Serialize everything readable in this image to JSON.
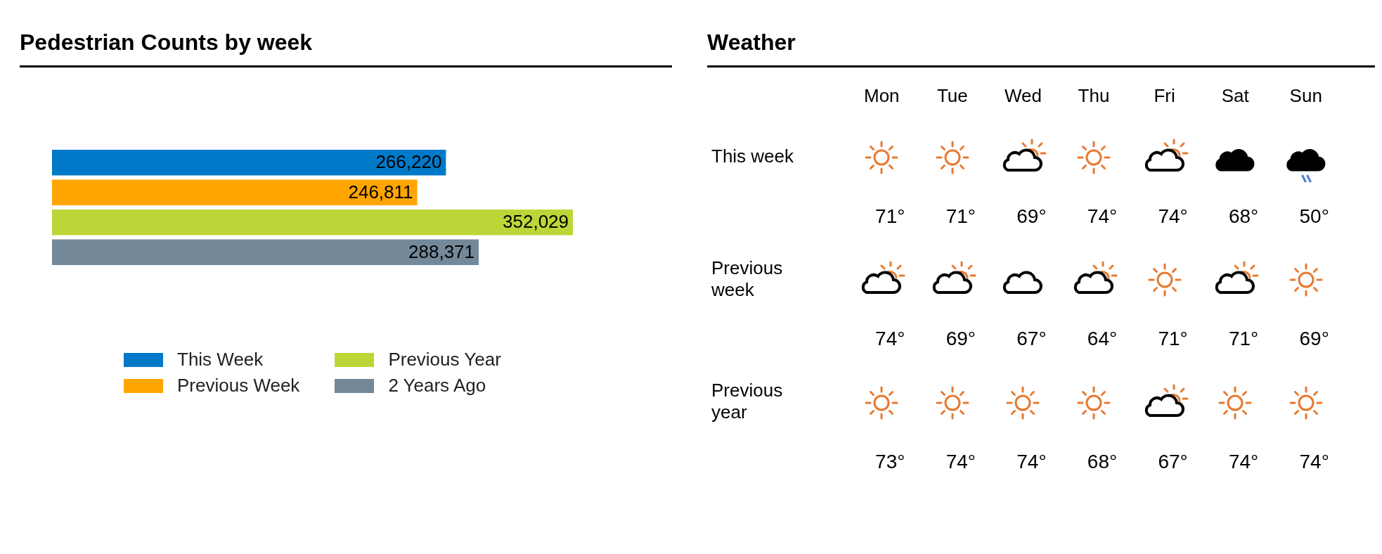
{
  "chart_data": [
    {
      "type": "bar",
      "title": "Pedestrian Counts by week",
      "orientation": "horizontal",
      "categories": [
        null
      ],
      "series": [
        {
          "name": "This Week",
          "color": "#0079c8",
          "values": [
            266220
          ],
          "value_labels": [
            "266,220"
          ]
        },
        {
          "name": "Previous Week",
          "color": "#ffa500",
          "values": [
            246811
          ],
          "value_labels": [
            "246,811"
          ]
        },
        {
          "name": "Previous Year",
          "color": "#bcd637",
          "values": [
            352029
          ],
          "value_labels": [
            "352,029"
          ]
        },
        {
          "name": "2 Years Ago",
          "color": "#738899",
          "values": [
            288371
          ],
          "value_labels": [
            "288,371"
          ]
        }
      ],
      "legend": "bottom"
    },
    {
      "type": "other",
      "title": "Weather",
      "categories": [
        "Mon",
        "Tue",
        "Wed",
        "Thu",
        "Fri",
        "Sat",
        "Sun"
      ],
      "y_categories": [
        "This week",
        "Previous week",
        "Previous year"
      ],
      "cell_labels": [
        [
          "71°",
          "71°",
          "69°",
          "74°",
          "74°",
          "68°",
          "50°"
        ],
        [
          "74°",
          "69°",
          "67°",
          "64°",
          "71°",
          "71°",
          "69°"
        ],
        [
          "73°",
          "74°",
          "74°",
          "68°",
          "67°",
          "74°",
          "74°"
        ]
      ]
    }
  ]
}
